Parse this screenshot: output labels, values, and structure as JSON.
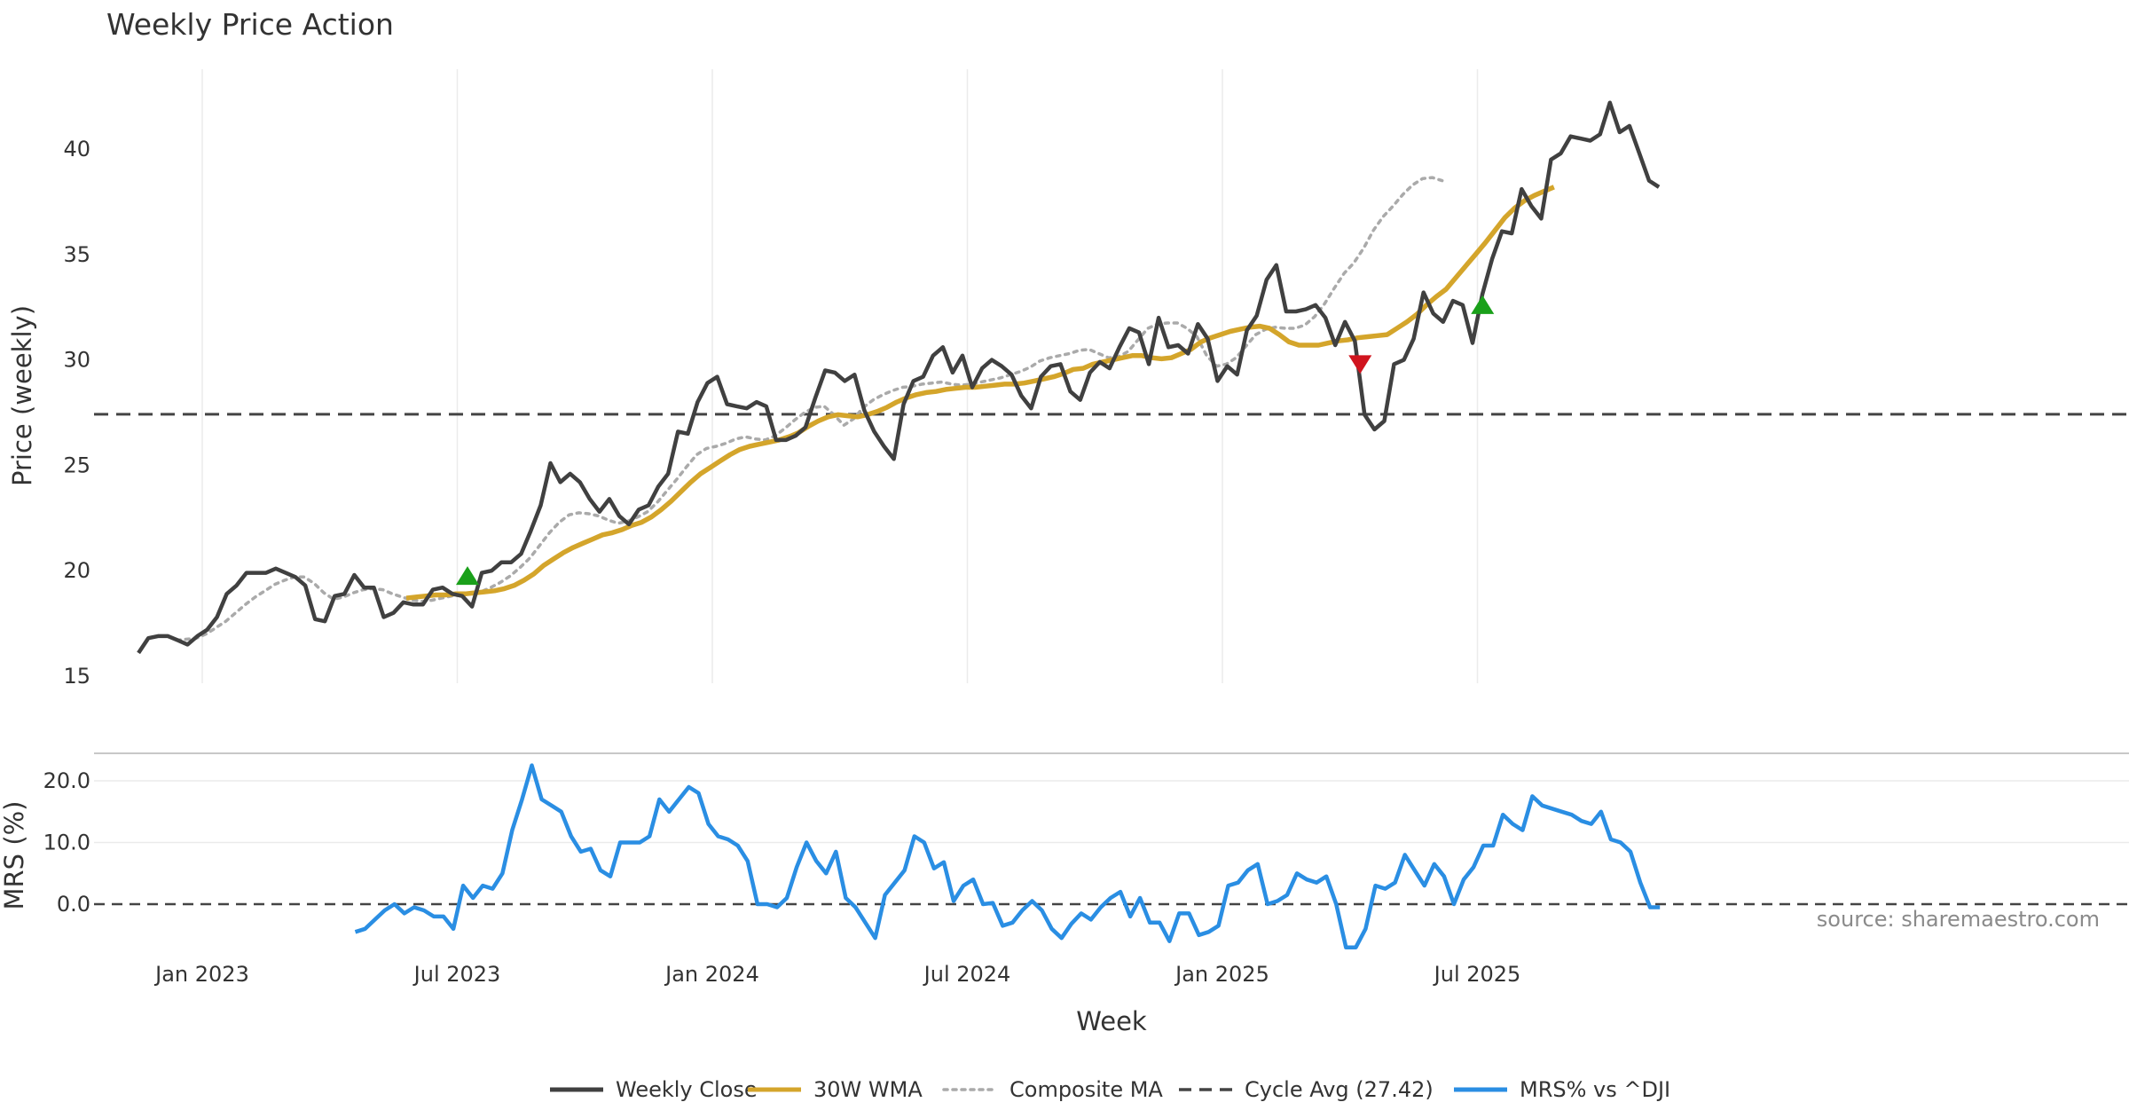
{
  "chart_data": {
    "type": "line",
    "title": "Weekly Price Action",
    "source": "source: sharemaestro.com",
    "xlabel": "Week",
    "x_ticks": [
      "Jan 2023",
      "Jul 2023",
      "Jan 2024",
      "Jul 2024",
      "Jan 2025",
      "Jul 2025"
    ],
    "panels": [
      {
        "name": "price",
        "ylabel": "Price (weekly)",
        "ylim": [
          15,
          43.5
        ],
        "yticks": [
          "15",
          "20",
          "25",
          "30",
          "35",
          "40"
        ],
        "grid": "vertical",
        "cycle_avg": 27.42,
        "series": [
          {
            "name": "Weekly Close",
            "color": "#404040",
            "x_start": 2022.875,
            "values": [
              16.1,
              16.8,
              16.9,
              16.9,
              16.7,
              16.5,
              16.9,
              17.2,
              17.8,
              18.9,
              19.3,
              19.9,
              19.9,
              19.9,
              20.1,
              19.9,
              19.7,
              19.3,
              17.7,
              17.6,
              18.8,
              18.9,
              19.8,
              19.2,
              19.2,
              17.8,
              18.0,
              18.5,
              18.4,
              18.4,
              19.1,
              19.2,
              18.9,
              18.8,
              18.3,
              19.9,
              20.0,
              20.4,
              20.4,
              20.8,
              21.9,
              23.1,
              25.1,
              24.2,
              24.6,
              24.2,
              23.4,
              22.8,
              23.4,
              22.6,
              22.2,
              22.9,
              23.1,
              24.0,
              24.6,
              26.6,
              26.5,
              28.0,
              28.9,
              29.2,
              27.9,
              27.8,
              27.7,
              28.0,
              27.8,
              26.2,
              26.2,
              26.4,
              26.8,
              28.2,
              29.5,
              29.4,
              29.0,
              29.3,
              27.6,
              26.6,
              25.9,
              25.3,
              27.9,
              29.0,
              29.2,
              30.2,
              30.6,
              29.4,
              30.2,
              28.7,
              29.6,
              30.0,
              29.7,
              29.3,
              28.3,
              27.7,
              29.2,
              29.7,
              29.8,
              28.5,
              28.1,
              29.4,
              29.9,
              29.6,
              30.6,
              31.5,
              31.3,
              29.8,
              32.0,
              30.6,
              30.7,
              30.3,
              31.7,
              31.0,
              29.0,
              29.7,
              29.3,
              31.4,
              32.1,
              33.8,
              34.5,
              32.3,
              32.3,
              32.4,
              32.6,
              32.0,
              30.7,
              31.8,
              30.9,
              27.4,
              26.7,
              27.1,
              29.8,
              30.0,
              31.0,
              33.2,
              32.2,
              31.8,
              32.8,
              32.6,
              30.8,
              33.1,
              34.8,
              36.1,
              36.0,
              38.1,
              37.3,
              36.7,
              39.5,
              39.8,
              40.6,
              40.5,
              40.4,
              40.7,
              42.2,
              40.8,
              41.1,
              39.8,
              38.5,
              38.2
            ]
          },
          {
            "name": "30W WMA",
            "color": "#d4a52b",
            "x_start": 2023.4,
            "values": [
              18.7,
              18.75,
              18.8,
              18.85,
              18.85,
              18.9,
              18.9,
              18.95,
              19.0,
              19.05,
              19.15,
              19.3,
              19.55,
              19.85,
              20.25,
              20.55,
              20.85,
              21.1,
              21.3,
              21.5,
              21.7,
              21.8,
              21.95,
              22.15,
              22.3,
              22.55,
              22.9,
              23.3,
              23.75,
              24.2,
              24.6,
              24.9,
              25.2,
              25.5,
              25.75,
              25.9,
              26.0,
              26.1,
              26.2,
              26.35,
              26.55,
              26.85,
              27.1,
              27.3,
              27.4,
              27.35,
              27.3,
              27.4,
              27.55,
              27.75,
              28.0,
              28.2,
              28.35,
              28.45,
              28.5,
              28.6,
              28.65,
              28.7,
              28.7,
              28.75,
              28.8,
              28.85,
              28.85,
              28.9,
              29.0,
              29.1,
              29.2,
              29.35,
              29.55,
              29.6,
              29.8,
              29.9,
              30.0,
              30.1,
              30.2,
              30.2,
              30.1,
              30.05,
              30.1,
              30.3,
              30.5,
              30.85,
              31.05,
              31.2,
              31.35,
              31.45,
              31.55,
              31.6,
              31.5,
              31.2,
              30.85,
              30.7,
              30.7,
              30.7,
              30.8,
              30.9,
              30.95,
              31.05,
              31.1,
              31.15,
              31.2,
              31.5,
              31.8,
              32.15,
              32.6,
              33.0,
              33.35,
              33.9,
              34.45,
              35.0,
              35.55,
              36.15,
              36.75,
              37.2,
              37.55,
              37.8,
              38.0,
              38.2
            ]
          },
          {
            "name": "Composite MA",
            "color": "#aaaaaa",
            "x_start": 2022.95,
            "values": [
              16.7,
              16.75,
              16.8,
              17.0,
              17.3,
              17.6,
              18.0,
              18.4,
              18.75,
              19.05,
              19.35,
              19.55,
              19.7,
              19.7,
              19.4,
              18.95,
              18.65,
              18.75,
              18.95,
              19.1,
              19.15,
              19.1,
              18.9,
              18.75,
              18.6,
              18.55,
              18.6,
              18.7,
              18.8,
              18.85,
              18.9,
              19.0,
              19.2,
              19.45,
              19.75,
              20.15,
              20.6,
              21.2,
              21.8,
              22.3,
              22.65,
              22.75,
              22.7,
              22.6,
              22.4,
              22.25,
              22.35,
              22.55,
              22.8,
              23.25,
              23.8,
              24.35,
              24.95,
              25.5,
              25.8,
              25.9,
              26.05,
              26.25,
              26.35,
              26.25,
              26.2,
              26.4,
              26.75,
              27.15,
              27.5,
              27.75,
              27.8,
              27.4,
              26.9,
              27.2,
              27.75,
              28.1,
              28.35,
              28.55,
              28.7,
              28.75,
              28.85,
              28.9,
              28.95,
              28.85,
              28.8,
              28.85,
              28.95,
              29.05,
              29.15,
              29.3,
              29.45,
              29.65,
              29.95,
              30.1,
              30.2,
              30.3,
              30.45,
              30.5,
              30.3,
              30.1,
              30.15,
              30.4,
              30.95,
              31.5,
              31.7,
              31.75,
              31.75,
              31.5,
              31.1,
              30.2,
              29.7,
              29.8,
              30.1,
              30.65,
              31.2,
              31.45,
              31.55,
              31.5,
              31.5,
              31.65,
              32.05,
              32.65,
              33.4,
              34.1,
              34.6,
              35.3,
              36.15,
              36.8,
              37.3,
              37.85,
              38.3,
              38.6,
              38.65,
              38.5
            ]
          }
        ],
        "signals": [
          {
            "type": "buy",
            "x": 2023.52,
            "value": 19.75,
            "color": "#1aa01a"
          },
          {
            "type": "sell",
            "x": 2025.27,
            "value": 29.8,
            "color": "#d0141e"
          },
          {
            "type": "buy",
            "x": 2025.51,
            "value": 32.6,
            "color": "#1aa01a"
          }
        ]
      },
      {
        "name": "mrs",
        "ylabel": "MRS (%)",
        "ylim": [
          -8,
          25
        ],
        "yticks": [
          "0.0",
          "10.0",
          "20.0"
        ],
        "baseline": 0,
        "series": [
          {
            "name": "MRS% vs ^DJI",
            "color": "#2a8ee3",
            "x_start": 2023.3,
            "values": [
              -4.5,
              -4.0,
              -2.5,
              -1.0,
              0.0,
              -1.5,
              -0.5,
              -1.0,
              -2.0,
              -2.0,
              -4.0,
              3.0,
              1.0,
              3.0,
              2.5,
              5.0,
              12.0,
              17.0,
              22.5,
              17.0,
              16.0,
              15.0,
              11.0,
              8.5,
              9.0,
              5.5,
              4.5,
              10.0,
              10.0,
              10.0,
              11.0,
              17.0,
              15.0,
              17.0,
              19.0,
              18.0,
              13.0,
              11.0,
              10.5,
              9.5,
              7.0,
              0.0,
              0.0,
              -0.5,
              1.0,
              6.0,
              10.0,
              7.0,
              5.0,
              8.5,
              1.0,
              -0.5,
              -3.0,
              -5.5,
              1.5,
              3.5,
              5.5,
              11.0,
              10.0,
              5.8,
              6.8,
              0.5,
              3.0,
              4.0,
              0.0,
              0.2,
              -3.5,
              -3.0,
              -1.0,
              0.5,
              -1.0,
              -4.0,
              -5.5,
              -3.2,
              -1.5,
              -2.5,
              -0.5,
              1.0,
              2.0,
              -2.0,
              1.0,
              -3.0,
              -3.0,
              -6.0,
              -1.5,
              -1.5,
              -5.0,
              -4.5,
              -3.5,
              3.0,
              3.5,
              5.5,
              6.5,
              0.0,
              0.5,
              1.5,
              5.0,
              4.0,
              3.5,
              4.5,
              0.0,
              -7.0,
              -7.0,
              -4.0,
              3.0,
              2.5,
              3.5,
              8.0,
              5.5,
              3.0,
              6.5,
              4.5,
              0.0,
              4.0,
              6.0,
              9.5,
              9.5,
              14.5,
              13.0,
              12.0,
              17.5,
              16.0,
              15.5,
              15.0,
              14.5,
              13.5,
              13.0,
              15.0,
              10.5,
              10.0,
              8.5,
              3.5,
              -0.5,
              -0.5
            ]
          }
        ]
      }
    ],
    "legend": {
      "placement": "bottom",
      "items": [
        {
          "label": "Weekly Close",
          "color": "#404040",
          "style": "solid"
        },
        {
          "label": "30W WMA",
          "color": "#d4a52b",
          "style": "solid"
        },
        {
          "label": "Composite MA",
          "color": "#aaaaaa",
          "style": "dotted"
        },
        {
          "label": "Cycle Avg (27.42)",
          "color": "#444444",
          "style": "dashed"
        },
        {
          "label": "MRS% vs ^DJI",
          "color": "#2a8ee3",
          "style": "solid"
        }
      ]
    }
  }
}
